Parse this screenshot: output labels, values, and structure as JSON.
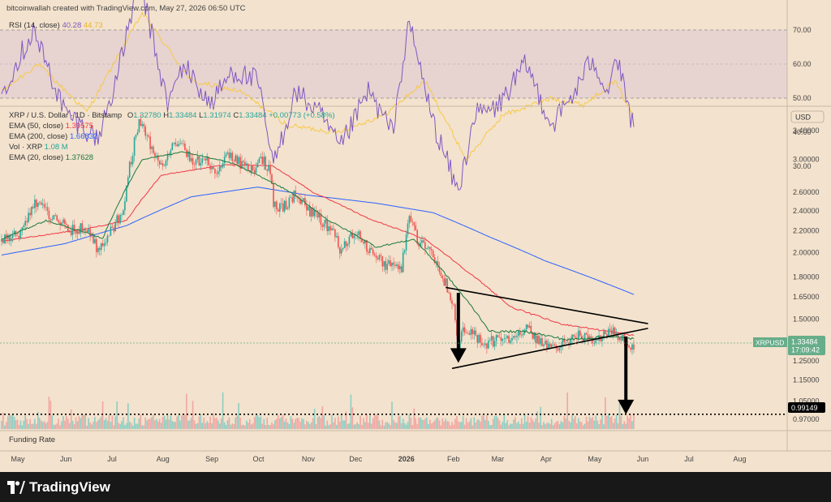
{
  "header": {
    "attribution": "bitcoinwallah created with TradingView.com, May 27, 2026 06:50 UTC"
  },
  "rsi_panel": {
    "label": "RSI (14, close)",
    "value": "40.28",
    "ma_value": "44.73",
    "ticks": [
      "70.00",
      "60.00",
      "50.00",
      "40.00",
      "30.00"
    ]
  },
  "price_legend": {
    "symbol": "XRP / U.S. Dollar · 1D · Bitstamp",
    "open_label": "O",
    "open": "1.32780",
    "high_label": "H",
    "high": "1.33484",
    "low_label": "L",
    "low": "1.31974",
    "close_label": "C",
    "close": "1.33484",
    "change": "+0.00773 (+0.58%)",
    "ema50_label": "EMA (50, close)",
    "ema50": "1.39575",
    "ema200_label": "EMA (200, close)",
    "ema200": "1.66832",
    "vol_label": "Vol · XRP",
    "vol": "1.08 M",
    "ema20_label": "EMA (20, close)",
    "ema20": "1.37628"
  },
  "price_axis": {
    "currency": "USD",
    "ticks": [
      "3.40000",
      "3.00000",
      "2.60000",
      "2.40000",
      "2.20000",
      "2.00000",
      "1.80000",
      "1.65000",
      "1.50000",
      "1.25000",
      "1.15000",
      "1.05000",
      "0.97000"
    ],
    "symbol_tag": "XRPUSD",
    "last_price": "1.33484",
    "countdown": "17:09:42",
    "level_price": "0.99149"
  },
  "funding_panel": {
    "label": "Funding Rate"
  },
  "time_axis": {
    "ticks": [
      "May",
      "Jun",
      "Jul",
      "Aug",
      "Sep",
      "Oct",
      "Nov",
      "Dec",
      "2026",
      "Feb",
      "Mar",
      "Apr",
      "May",
      "Jun",
      "Jul",
      "Aug"
    ]
  },
  "footer": {
    "brand": "TradingView"
  },
  "colors": {
    "background": "#f3e2cd",
    "rsi_band": "#e7d3d0",
    "rsi_line": "#7e57c2",
    "rsi_ma": "#f7c948",
    "candle_up": "#26a69a",
    "candle_down": "#ef5350",
    "ema50": "#f23645",
    "ema200": "#2962ff",
    "ema20": "#1b7a3e",
    "vol_up": "#8ccfc4",
    "vol_down": "#f2a6a2",
    "tag_bg": "#67ad8a",
    "level_tag_bg": "#000000"
  },
  "chart_data": {
    "type": "candlestick",
    "title": "XRP / U.S. Dollar · 1D · Bitstamp",
    "y_scale": "log",
    "ylim": [
      0.93,
      3.7
    ],
    "xlim": [
      "2025-04-22",
      "2026-08-30"
    ],
    "price_keypoints": [
      [
        "2025-04-22",
        2.1
      ],
      [
        "2025-05-05",
        2.2
      ],
      [
        "2025-05-13",
        2.5
      ],
      [
        "2025-05-25",
        2.33
      ],
      [
        "2025-06-05",
        2.2
      ],
      [
        "2025-06-15",
        2.23
      ],
      [
        "2025-06-22",
        2.02
      ],
      [
        "2025-06-30",
        2.2
      ],
      [
        "2025-07-08",
        2.4
      ],
      [
        "2025-07-12",
        2.9
      ],
      [
        "2025-07-18",
        3.55
      ],
      [
        "2025-07-25",
        3.2
      ],
      [
        "2025-08-02",
        2.9
      ],
      [
        "2025-08-08",
        3.25
      ],
      [
        "2025-08-14",
        3.25
      ],
      [
        "2025-08-20",
        2.95
      ],
      [
        "2025-08-28",
        3.0
      ],
      [
        "2025-09-05",
        2.83
      ],
      [
        "2025-09-12",
        3.05
      ],
      [
        "2025-09-20",
        2.95
      ],
      [
        "2025-09-28",
        2.85
      ],
      [
        "2025-10-04",
        3.0
      ],
      [
        "2025-10-09",
        2.85
      ],
      [
        "2025-10-11",
        2.45
      ],
      [
        "2025-10-20",
        2.45
      ],
      [
        "2025-10-25",
        2.62
      ],
      [
        "2025-11-02",
        2.4
      ],
      [
        "2025-11-10",
        2.3
      ],
      [
        "2025-11-18",
        2.2
      ],
      [
        "2025-11-22",
        2.0
      ],
      [
        "2025-12-02",
        2.2
      ],
      [
        "2025-12-12",
        2.0
      ],
      [
        "2025-12-20",
        1.9
      ],
      [
        "2025-12-31",
        1.87
      ],
      [
        "2026-01-05",
        2.35
      ],
      [
        "2026-01-10",
        2.12
      ],
      [
        "2026-01-20",
        1.98
      ],
      [
        "2026-01-28",
        1.75
      ],
      [
        "2026-02-02",
        1.6
      ],
      [
        "2026-02-05",
        1.25
      ],
      [
        "2026-02-07",
        1.44
      ],
      [
        "2026-02-15",
        1.4
      ],
      [
        "2026-02-22",
        1.35
      ],
      [
        "2026-03-01",
        1.37
      ],
      [
        "2026-03-08",
        1.38
      ],
      [
        "2026-03-15",
        1.4
      ],
      [
        "2026-03-20",
        1.45
      ],
      [
        "2026-03-28",
        1.36
      ],
      [
        "2026-04-05",
        1.32
      ],
      [
        "2026-04-15",
        1.36
      ],
      [
        "2026-04-22",
        1.4
      ],
      [
        "2026-04-30",
        1.38
      ],
      [
        "2026-05-08",
        1.39
      ],
      [
        "2026-05-15",
        1.43
      ],
      [
        "2026-05-18",
        1.38
      ],
      [
        "2026-05-22",
        1.36
      ],
      [
        "2026-05-27",
        1.33484
      ]
    ],
    "ema200_keypoints": [
      [
        "2025-04-22",
        1.98
      ],
      [
        "2025-06-01",
        2.08
      ],
      [
        "2025-07-10",
        2.25
      ],
      [
        "2025-08-20",
        2.55
      ],
      [
        "2025-10-01",
        2.66
      ],
      [
        "2025-11-01",
        2.57
      ],
      [
        "2025-12-15",
        2.48
      ],
      [
        "2026-01-20",
        2.38
      ],
      [
        "2026-02-25",
        2.14
      ],
      [
        "2026-04-01",
        1.93
      ],
      [
        "2026-05-27",
        1.66832
      ]
    ],
    "ema50_keypoints": [
      [
        "2025-04-22",
        2.1
      ],
      [
        "2025-06-15",
        2.22
      ],
      [
        "2025-07-10",
        2.3
      ],
      [
        "2025-08-01",
        2.8
      ],
      [
        "2025-09-10",
        2.93
      ],
      [
        "2025-10-10",
        2.92
      ],
      [
        "2025-11-05",
        2.6
      ],
      [
        "2025-12-10",
        2.32
      ],
      [
        "2026-01-15",
        2.12
      ],
      [
        "2026-02-10",
        1.85
      ],
      [
        "2026-03-10",
        1.58
      ],
      [
        "2026-04-10",
        1.47
      ],
      [
        "2026-05-27",
        1.39575
      ]
    ],
    "ema20_keypoints": [
      [
        "2025-04-22",
        2.12
      ],
      [
        "2025-05-20",
        2.3
      ],
      [
        "2025-06-25",
        2.13
      ],
      [
        "2025-07-20",
        3.0
      ],
      [
        "2025-08-15",
        3.1
      ],
      [
        "2025-09-15",
        2.95
      ],
      [
        "2025-10-20",
        2.62
      ],
      [
        "2025-11-15",
        2.3
      ],
      [
        "2025-12-15",
        2.05
      ],
      [
        "2026-01-08",
        2.12
      ],
      [
        "2026-02-05",
        1.7
      ],
      [
        "2026-02-25",
        1.42
      ],
      [
        "2026-03-20",
        1.42
      ],
      [
        "2026-04-15",
        1.37
      ],
      [
        "2026-05-10",
        1.39
      ],
      [
        "2026-05-27",
        1.37628
      ]
    ],
    "rsi_keypoints": [
      [
        "2025-04-22",
        52
      ],
      [
        "2025-05-12",
        70
      ],
      [
        "2025-06-01",
        46
      ],
      [
        "2025-06-22",
        38
      ],
      [
        "2025-07-05",
        58
      ],
      [
        "2025-07-18",
        85
      ],
      [
        "2025-08-05",
        48
      ],
      [
        "2025-08-15",
        60
      ],
      [
        "2025-09-01",
        48
      ],
      [
        "2025-09-15",
        58
      ],
      [
        "2025-10-01",
        55
      ],
      [
        "2025-10-11",
        30
      ],
      [
        "2025-10-25",
        52
      ],
      [
        "2025-11-10",
        45
      ],
      [
        "2025-11-22",
        35
      ],
      [
        "2025-12-10",
        52
      ],
      [
        "2025-12-25",
        40
      ],
      [
        "2026-01-05",
        72
      ],
      [
        "2026-01-20",
        43
      ],
      [
        "2026-02-05",
        22
      ],
      [
        "2026-02-15",
        45
      ],
      [
        "2026-03-01",
        47
      ],
      [
        "2026-03-20",
        60
      ],
      [
        "2026-04-05",
        42
      ],
      [
        "2026-04-20",
        52
      ],
      [
        "2026-05-01",
        62
      ],
      [
        "2026-05-10",
        52
      ],
      [
        "2026-05-16",
        62
      ],
      [
        "2026-05-27",
        40.28
      ]
    ],
    "rsi_ma_keypoints": [
      [
        "2025-04-22",
        52
      ],
      [
        "2025-05-15",
        60
      ],
      [
        "2025-06-15",
        46
      ],
      [
        "2025-07-20",
        75
      ],
      [
        "2025-08-20",
        55
      ],
      [
        "2025-09-20",
        52
      ],
      [
        "2025-10-20",
        42
      ],
      [
        "2025-11-20",
        40
      ],
      [
        "2025-12-20",
        45
      ],
      [
        "2026-01-15",
        55
      ],
      [
        "2026-02-10",
        32
      ],
      [
        "2026-03-05",
        45
      ],
      [
        "2026-04-05",
        50
      ],
      [
        "2026-04-25",
        48
      ],
      [
        "2026-05-15",
        55
      ],
      [
        "2026-05-27",
        44.73
      ]
    ],
    "annotations": {
      "triangle_upper": [
        [
          "2026-01-28",
          1.72
        ],
        [
          "2026-06-05",
          1.47
        ]
      ],
      "triangle_lower": [
        [
          "2026-02-01",
          1.21
        ],
        [
          "2026-06-05",
          1.44
        ]
      ],
      "arrow_feb": [
        [
          "2026-02-05",
          1.68
        ],
        [
          "2026-02-05",
          1.24
        ]
      ],
      "arrow_may": [
        [
          "2026-05-22",
          1.39
        ],
        [
          "2026-05-22",
          0.99149
        ]
      ],
      "dotted_level": 0.99149
    }
  }
}
